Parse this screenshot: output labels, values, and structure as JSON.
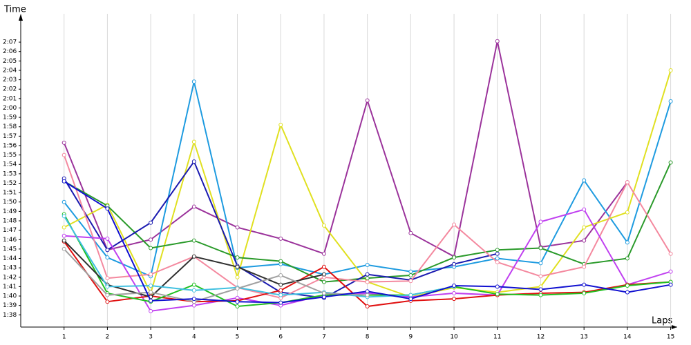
{
  "chart_data": {
    "type": "line",
    "y_label": "Time",
    "x_label": "Laps",
    "x": [
      1,
      2,
      3,
      4,
      5,
      6,
      7,
      8,
      9,
      10,
      11,
      12,
      13,
      14,
      15
    ],
    "xlim": [
      0,
      15.15
    ],
    "xticks": [
      1,
      2,
      3,
      4,
      5,
      6,
      7,
      8,
      9,
      10,
      11,
      12,
      13,
      14,
      15
    ],
    "ylim": [
      96.7,
      129.5
    ],
    "yticks": [
      {
        "value": 98,
        "label": "1:38"
      },
      {
        "value": 99,
        "label": "1:39"
      },
      {
        "value": 100,
        "label": "1:40"
      },
      {
        "value": 101,
        "label": "1:41"
      },
      {
        "value": 102,
        "label": "1:42"
      },
      {
        "value": 103,
        "label": "1:43"
      },
      {
        "value": 104,
        "label": "1:44"
      },
      {
        "value": 105,
        "label": "1:45"
      },
      {
        "value": 106,
        "label": "1:46"
      },
      {
        "value": 107,
        "label": "1:47"
      },
      {
        "value": 108,
        "label": "1:48"
      },
      {
        "value": 109,
        "label": "1:49"
      },
      {
        "value": 110,
        "label": "1:50"
      },
      {
        "value": 111,
        "label": "1:51"
      },
      {
        "value": 112,
        "label": "1:52"
      },
      {
        "value": 113,
        "label": "1:53"
      },
      {
        "value": 114,
        "label": "1:54"
      },
      {
        "value": 115,
        "label": "1:55"
      },
      {
        "value": 116,
        "label": "1:56"
      },
      {
        "value": 117,
        "label": "1:57"
      },
      {
        "value": 118,
        "label": "1:58"
      },
      {
        "value": 119,
        "label": "1:59"
      },
      {
        "value": 120,
        "label": "2:00"
      },
      {
        "value": 121,
        "label": "2:01"
      },
      {
        "value": 122,
        "label": "2:02"
      },
      {
        "value": 123,
        "label": "2:03"
      },
      {
        "value": 124,
        "label": "2:04"
      },
      {
        "value": 125,
        "label": "2:05"
      },
      {
        "value": 126,
        "label": "2:06"
      },
      {
        "value": 127,
        "label": "2:07"
      }
    ],
    "grid": true,
    "series": [
      {
        "color": "#9b339b",
        "values": [
          116.3,
          104.9,
          106.0,
          109.5,
          107.3,
          106.1,
          104.5,
          120.8,
          106.7,
          104.2,
          127.1,
          105.2,
          105.9,
          112.1,
          null
        ]
      },
      {
        "color": "#1e9be0",
        "values": [
          110.0,
          104.1,
          102.1,
          122.8,
          103.0,
          103.4,
          102.3,
          103.3,
          102.6,
          103.1,
          104.0,
          103.5,
          112.3,
          105.7,
          120.7
        ]
      },
      {
        "color": "#e0e020",
        "values": [
          107.3,
          109.7,
          100.3,
          116.4,
          102.0,
          118.2,
          107.5,
          101.5,
          99.9,
          100.9,
          100.4,
          101.0,
          107.3,
          108.9,
          124.0
        ]
      },
      {
        "color": "#2a9a2a",
        "values": [
          112.2,
          109.6,
          105.1,
          105.9,
          104.1,
          103.7,
          101.5,
          101.9,
          102.2,
          104.1,
          104.9,
          105.1,
          103.4,
          104.0,
          114.2
        ]
      },
      {
        "color": "#1a1ab0",
        "values": [
          112.5,
          104.9,
          107.8,
          114.3,
          103.2,
          100.4,
          99.8,
          102.3,
          101.7,
          103.4,
          104.5,
          null,
          null,
          null,
          null
        ]
      },
      {
        "color": "#f4899f",
        "values": [
          115.0,
          101.9,
          102.3,
          104.2,
          100.9,
          99.8,
          102.0,
          101.5,
          101.6,
          107.6,
          103.6,
          102.1,
          103.1,
          112.1,
          104.5
        ]
      },
      {
        "color": "#c040f0",
        "values": [
          106.4,
          106.1,
          98.4,
          99.0,
          99.8,
          99.0,
          100.1,
          100.3,
          99.9,
          100.3,
          100.1,
          107.9,
          109.2,
          101.2,
          102.6
        ]
      },
      {
        "color": "#e01010",
        "values": [
          105.8,
          99.4,
          100.0,
          99.4,
          99.5,
          100.6,
          103.1,
          98.9,
          99.5,
          99.7,
          100.1,
          100.3,
          100.4,
          101.2,
          101.5
        ]
      },
      {
        "color": "#20c020",
        "values": [
          108.7,
          100.3,
          99.4,
          101.2,
          98.9,
          99.3,
          100.1,
          100.1,
          100.1,
          101.0,
          100.2,
          100.1,
          100.3,
          101.1,
          101.5
        ]
      },
      {
        "color": "#303030",
        "values": [
          105.9,
          101.2,
          99.9,
          104.2,
          103.1,
          101.2,
          102.3,
          null,
          null,
          null,
          null,
          null,
          null,
          null,
          null
        ]
      },
      {
        "color": "#40c0e0",
        "values": [
          108.5,
          101.0,
          101.1,
          100.6,
          100.9,
          100.1,
          100.4,
          99.9,
          100.1,
          101.0,
          null,
          null,
          null,
          null,
          null
        ]
      },
      {
        "color": "#a0a0a0",
        "values": [
          105.0,
          100.1,
          100.4,
          99.4,
          100.8,
          102.2,
          100.3,
          100.1,
          null,
          null,
          null,
          null,
          null,
          null,
          null
        ]
      },
      {
        "color": "#1010d0",
        "values": [
          112.2,
          109.3,
          99.5,
          99.7,
          99.4,
          99.3,
          99.9,
          100.5,
          99.7,
          101.1,
          101.0,
          100.7,
          101.2,
          100.4,
          101.2
        ]
      }
    ]
  }
}
